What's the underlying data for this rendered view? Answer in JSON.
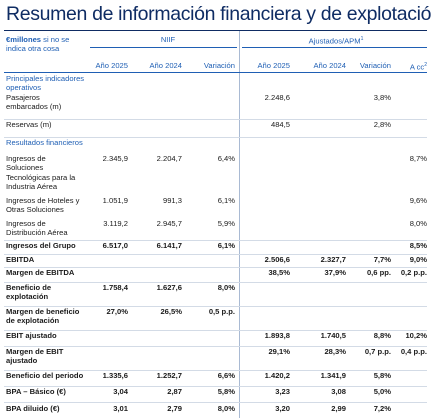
{
  "title": "Resumen de información financiera y de explotación",
  "header": {
    "units_bold": "€millones",
    "units_rest_1": " si no se",
    "units_rest_2": "indica otra cosa",
    "group_niif": "NIIF",
    "group_adjusted": "Ajustados/APM",
    "group_adjusted_sup": "1",
    "columns": [
      "Año 2025",
      "Año 2024",
      "Variación",
      "Año 2025",
      "Año 2024",
      "Variación",
      "A cc"
    ],
    "last_col_sup": "2"
  },
  "section_operativos": [
    "Principales indicadores",
    "operativos"
  ],
  "section_financieros": "Resultados financieros",
  "rows": [
    {
      "label": [
        "Pasajeros",
        "embarcados (m)"
      ],
      "cells": [
        "",
        "",
        "",
        "2.248,6",
        "",
        "3,8%",
        ""
      ]
    },
    {
      "label": [
        "Reservas (m)"
      ],
      "cells": [
        "",
        "",
        "",
        "484,5",
        "",
        "2,8%",
        ""
      ]
    },
    {
      "label": [
        "Ingresos de",
        "Soluciones",
        "Tecnológicas para la",
        "Industria Aérea"
      ],
      "cells": [
        "2.345,9",
        "2.204,7",
        "6,4%",
        "",
        "",
        "",
        "8,7%"
      ]
    },
    {
      "label": [
        "Ingresos de Hoteles y",
        "Otras Soluciones"
      ],
      "cells": [
        "1.051,9",
        "991,3",
        "6,1%",
        "",
        "",
        "",
        "9,6%"
      ]
    },
    {
      "label": [
        "Ingresos de",
        "Distribución Aérea"
      ],
      "cells": [
        "3.119,2",
        "2.945,7",
        "5,9%",
        "",
        "",
        "",
        "8,0%"
      ]
    },
    {
      "label": [
        "Ingresos del Grupo"
      ],
      "cells": [
        "6.517,0",
        "6.141,7",
        "6,1%",
        "",
        "",
        "",
        "8,5%"
      ]
    },
    {
      "label": [
        "EBITDA"
      ],
      "cells": [
        "",
        "",
        "",
        "2.506,6",
        "2.327,7",
        "7,7%",
        "9,0%"
      ]
    },
    {
      "label": [
        "Margen de EBITDA"
      ],
      "cells": [
        "",
        "",
        "",
        "38,5%",
        "37,9%",
        "0,6 pp.",
        "0,2 p.p."
      ]
    },
    {
      "label": [
        "Beneficio de",
        "explotación"
      ],
      "cells": [
        "1.758,4",
        "1.627,6",
        "8,0%",
        "",
        "",
        "",
        ""
      ]
    },
    {
      "label": [
        "Margen de beneficio",
        "de explotación"
      ],
      "cells": [
        "27,0%",
        "26,5%",
        "0,5 p.p.",
        "",
        "",
        "",
        ""
      ]
    },
    {
      "label": [
        "EBIT ajustado"
      ],
      "cells": [
        "",
        "",
        "",
        "1.893,8",
        "1.740,5",
        "8,8%",
        "10,2%"
      ]
    },
    {
      "label": [
        "Margen de EBIT",
        "ajustado"
      ],
      "cells": [
        "",
        "",
        "",
        "29,1%",
        "28,3%",
        "0,7 p.p.",
        "0,4 p.p."
      ]
    },
    {
      "label": [
        "Beneficio del periodo"
      ],
      "cells": [
        "1.335,6",
        "1.252,7",
        "6,6%",
        "1.420,2",
        "1.341,9",
        "5,8%",
        ""
      ]
    },
    {
      "label": [
        "BPA – Básico (€)"
      ],
      "cells": [
        "3,04",
        "2,87",
        "5,8%",
        "3,23",
        "3,08",
        "5,0%",
        ""
      ]
    },
    {
      "label": [
        "BPA diluido (€)"
      ],
      "cells": [
        "3,01",
        "2,79",
        "8,0%",
        "3,20",
        "2,99",
        "7,2%",
        ""
      ]
    }
  ],
  "colors": {
    "title": "#0f2c63",
    "accent": "#1f5fb4",
    "rule": "#d3dbe6"
  }
}
